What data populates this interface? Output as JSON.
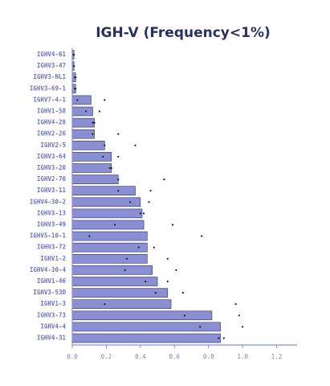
{
  "chart_data": {
    "type": "bar",
    "orientation": "horizontal",
    "title": "IGH-V (Frequency<1%)",
    "categories": [
      "IGHV4-61",
      "IGHV3-47",
      "IGHV3-NL1",
      "IGHV3-69-1",
      "IGHV7-4-1",
      "IGHV1-58",
      "IGHV4-28",
      "IGHV2-26",
      "IGHV2-5",
      "IGHV3-64",
      "IGHV3-20",
      "IGHV2-70",
      "IGHV3-11",
      "IGHV4-30-2",
      "IGHV3-13",
      "IGHV3-49",
      "IGHV5-10-1",
      "IGHV3-72",
      "IGHV1-2",
      "IGHV4-30-4",
      "IGHV1-46",
      "IGHV3-53D",
      "IGHV1-3",
      "IGHV3-73",
      "IGHV4-4",
      "IGHV4-31"
    ],
    "values": [
      0.01,
      0.01,
      0.02,
      0.02,
      0.11,
      0.12,
      0.13,
      0.13,
      0.19,
      0.23,
      0.23,
      0.27,
      0.37,
      0.4,
      0.41,
      0.42,
      0.44,
      0.44,
      0.44,
      0.47,
      0.5,
      0.56,
      0.58,
      0.82,
      0.87,
      0.87
    ],
    "color": "#8a8ed3",
    "points": [
      [
        0.005,
        0.01,
        0.015,
        0.015,
        0.03,
        0.08,
        0.12,
        0.12,
        0.19,
        0.18,
        0.22,
        0.27,
        0.27,
        0.34,
        0.4,
        0.25,
        0.1,
        0.39,
        0.32,
        0.31,
        0.43,
        0.49,
        0.19,
        0.66,
        0.75,
        0.86
      ],
      [
        0.01,
        0.01,
        0.02,
        0.02,
        0.19,
        0.16,
        0.13,
        0.27,
        0.37,
        0.27,
        0.23,
        0.54,
        0.46,
        0.45,
        0.42,
        0.59,
        0.76,
        0.48,
        0.56,
        0.61,
        0.56,
        0.65,
        0.96,
        0.98,
        1.0,
        0.89
      ]
    ],
    "point_color": "#1a1a2e",
    "xlim": [
      0,
      1.32
    ],
    "xticks": [
      {
        "value": 0,
        "label": "0.0"
      },
      0.2,
      0.4,
      0.6,
      0.8,
      {
        "value": 1,
        "label": "1.0"
      },
      1.2
    ]
  }
}
